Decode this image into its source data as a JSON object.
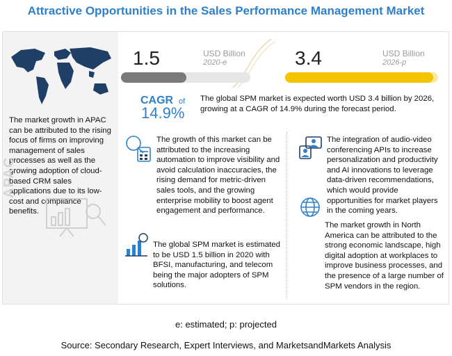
{
  "title": "Attractive Opportunities in the Sales Performance Management Market",
  "apac_watermark": "APAC",
  "apac_text": "The market growth in APAC can be attributed to the rising focus of firms on improving management of sales processes as well as the growing adoption of cloud-based CRM sales applications due to its low-cost and compliance benefits.",
  "chart_data": {
    "type": "bar",
    "categories": [
      "2020-e",
      "2026-p"
    ],
    "values": [
      1.5,
      3.4
    ],
    "value_labels": [
      "1.5",
      "3.4"
    ],
    "unit": "USD Billion",
    "colors": [
      "#7a7a7a",
      "#f5c400"
    ]
  },
  "cagr": {
    "label": "CAGR",
    "of": "of",
    "value": "14.9%"
  },
  "global_text": "The global SPM market is expected worth USD 3.4 billion by 2026, growing at a CAGR of 14.9% during the forecast period.",
  "points": {
    "growth": "The growth of this market can be attributed to the increasing automation to improve visibility and avoid calculation inaccuracies, the rising demand for metric-driven sales tools, and the growing enterprise mobility to boost agent engagement and performance.",
    "integration": "The integration of audio-video conferencing APIs to increase personalization and productivity and AI innovations to leverage data-driven recommendations, which would provide opportunities for market players in the coming years.",
    "estimate": "The global SPM market is estimated to be USD 1.5 billion in 2020 with BFSI, manufacturing, and telecom being the major adopters of SPM solutions.",
    "north_america": "The market growth in North America can be attributed to the strong economic landscape, high digital adoption at workplaces to improve business processes, and the presence of a large number of SPM vendors in the region."
  },
  "footnote": "e: estimated; p: projected",
  "source": "Source: Secondary Research, Expert Interviews, and MarketsandMarkets Analysis",
  "colors": {
    "title": "#2f80c8",
    "bar_2020": "#7a7a7a",
    "bar_2026": "#f5c400",
    "icon_blue": "#2f80c8"
  }
}
